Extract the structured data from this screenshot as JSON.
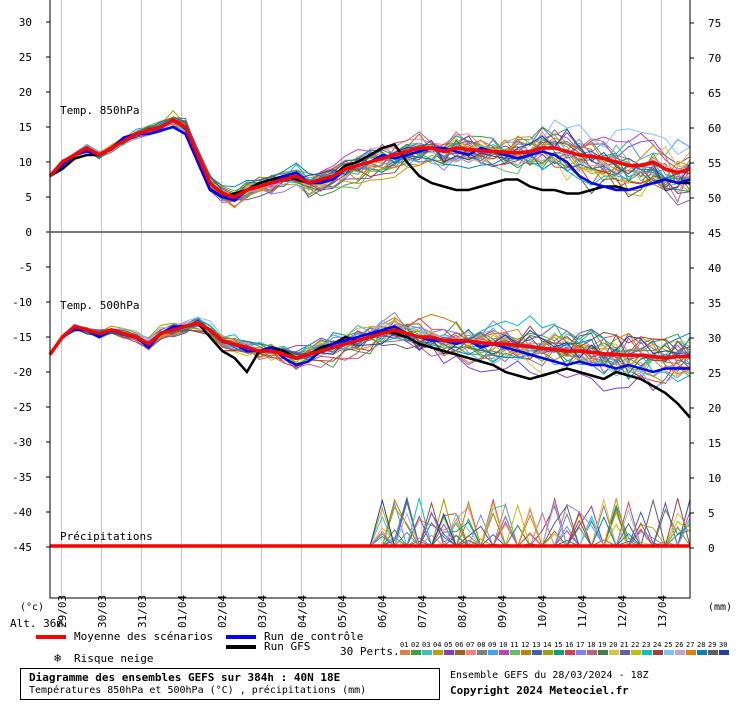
{
  "chart_data": {
    "type": "line",
    "panels": [
      {
        "label": "Temp. 850hPa",
        "y_axis_left": {
          "ticks": [
            30,
            25,
            20,
            15,
            10,
            5,
            0
          ]
        },
        "y_axis_right": {
          "ticks": [
            75,
            70,
            65,
            60,
            55,
            50,
            45
          ]
        },
        "mean": [
          8,
          10,
          11,
          12,
          11,
          12,
          13,
          14,
          14.5,
          15,
          16,
          15,
          11,
          7,
          5.5,
          5,
          6,
          6.5,
          7,
          7.5,
          8,
          7,
          7.5,
          8,
          9,
          9.5,
          10,
          10.5,
          11,
          11.5,
          12,
          12,
          11.5,
          12,
          11.8,
          11.6,
          11.5,
          11.4,
          11.3,
          11.5,
          12,
          12,
          11.5,
          11,
          10.8,
          10.5,
          10,
          9.5,
          9.5,
          10,
          9,
          8.5,
          9
        ],
        "control": [
          8,
          9.5,
          11,
          11.5,
          11,
          12,
          13.5,
          14,
          14,
          14.5,
          15,
          14,
          10,
          6,
          5,
          4.5,
          6,
          6.5,
          7,
          8,
          8.5,
          7,
          7,
          7.5,
          9,
          9.5,
          10,
          11,
          10.5,
          11,
          11.5,
          12,
          12,
          11.5,
          11,
          12,
          11.5,
          11,
          10.5,
          11,
          11.5,
          11,
          10,
          8,
          7,
          6.5,
          6,
          6,
          6.5,
          7,
          7.5,
          7,
          7.5
        ],
        "gfs": [
          8,
          9,
          10.5,
          11,
          11,
          12,
          13,
          14,
          14.5,
          15,
          16,
          15,
          10,
          6,
          5,
          5.5,
          6,
          7,
          7.5,
          8,
          7.5,
          7,
          7,
          8,
          9.5,
          10,
          11,
          12,
          12.5,
          10,
          8,
          7,
          6.5,
          6,
          6,
          6.5,
          7,
          7.5,
          7.5,
          6.5,
          6,
          6,
          5.5,
          5.5,
          6,
          6.5,
          6.5,
          6,
          6.5,
          7,
          7.5,
          7,
          7
        ]
      },
      {
        "label": "Temp. 500hPa",
        "y_axis_left": {
          "ticks": [
            -5,
            -10,
            -15,
            -20,
            -25,
            -30,
            -35,
            -40,
            -45
          ]
        },
        "y_axis_right": {
          "ticks": [
            40,
            35,
            30,
            25,
            20,
            15,
            10,
            5,
            0
          ]
        },
        "mean": [
          -17.5,
          -15,
          -13.5,
          -14,
          -14.5,
          -14,
          -14.5,
          -15,
          -16,
          -14.5,
          -14,
          -13.5,
          -13,
          -14,
          -15.5,
          -16,
          -16.5,
          -17,
          -17,
          -17.5,
          -18,
          -17.5,
          -17,
          -16.5,
          -16,
          -15.5,
          -15,
          -14.5,
          -14,
          -14.5,
          -15,
          -15,
          -15.5,
          -15.5,
          -15.6,
          -15.8,
          -16,
          -16,
          -16.2,
          -16.4,
          -16.6,
          -16.8,
          -17,
          -17,
          -17.2,
          -17.4,
          -17.5,
          -17.6,
          -17.6,
          -17.8,
          -18,
          -17.8,
          -17.8
        ],
        "control": [
          -17.5,
          -15,
          -14,
          -14,
          -15,
          -14,
          -14.5,
          -15,
          -16.5,
          -14.5,
          -13.5,
          -13.5,
          -13,
          -14,
          -15.5,
          -16,
          -17,
          -17,
          -16.5,
          -18,
          -19,
          -18.5,
          -17,
          -16,
          -15.5,
          -15,
          -14.5,
          -14,
          -13.5,
          -14.5,
          -15,
          -15.5,
          -15.5,
          -16,
          -15.5,
          -16.5,
          -16,
          -16.5,
          -17,
          -17.5,
          -18,
          -18.5,
          -19,
          -18.5,
          -19,
          -19,
          -19.5,
          -19,
          -19.5,
          -20,
          -19.5,
          -19.5,
          -19.5
        ],
        "gfs": [
          -17.5,
          -15,
          -13.5,
          -14,
          -14.5,
          -14,
          -14.5,
          -15,
          -16,
          -14.5,
          -14,
          -13.5,
          -13,
          -15,
          -17,
          -18,
          -20,
          -17,
          -16.5,
          -17,
          -18,
          -17.5,
          -16.5,
          -16,
          -15,
          -15.5,
          -15,
          -14,
          -14.5,
          -15,
          -16,
          -16.5,
          -17,
          -17.5,
          -18,
          -18.5,
          -19,
          -20,
          -20.5,
          -21,
          -20.5,
          -20,
          -19.5,
          -20,
          -20.5,
          -21,
          -20,
          -20.5,
          -21,
          -22,
          -23,
          -24.5,
          -26.5
        ]
      },
      {
        "label": "Précipitations",
        "y_axis_right": {
          "ticks": [
            10,
            5,
            0
          ]
        },
        "mean": [
          0,
          0,
          0,
          0,
          0,
          0,
          0,
          0,
          0,
          0,
          0,
          0,
          0,
          0,
          0,
          0,
          0,
          0,
          0,
          0,
          0,
          0,
          0,
          0,
          0,
          0,
          0,
          0,
          0,
          0,
          0,
          0,
          0,
          0,
          0,
          0,
          0,
          0,
          0,
          0,
          0,
          0,
          0,
          0,
          0,
          0,
          0,
          0,
          0,
          0,
          0,
          0,
          0
        ]
      }
    ],
    "x_ticks": [
      "29/03",
      "30/03",
      "31/03",
      "01/04",
      "02/04",
      "03/04",
      "04/04",
      "05/04",
      "06/04",
      "07/04",
      "08/04",
      "09/04",
      "10/04",
      "11/04",
      "12/04",
      "13/04"
    ],
    "left_unit": "(°c)",
    "right_unit": "(mm)",
    "altitude": "Alt. 36m",
    "legend": {
      "mean": "Moyenne des scénarios",
      "control": "Run de contrôle",
      "gfs": "Run GFS",
      "snow": "Risque neige",
      "perts": "30 Perts."
    },
    "pert_labels": [
      "01",
      "02",
      "03",
      "04",
      "05",
      "06",
      "07",
      "08",
      "09",
      "10",
      "11",
      "12",
      "13",
      "14",
      "15",
      "16",
      "17",
      "18",
      "19",
      "20",
      "21",
      "22",
      "23",
      "24",
      "25",
      "26",
      "27",
      "28",
      "29",
      "30"
    ],
    "pert_colors": [
      "#e08040",
      "#40a040",
      "#40c0c0",
      "#c0a000",
      "#8040c0",
      "#a06020",
      "#ff8080",
      "#808080",
      "#40a0ff",
      "#c040c0",
      "#60c060",
      "#c08000",
      "#4060c0",
      "#a0a000",
      "#00a080",
      "#e04040",
      "#8080ff",
      "#c06080",
      "#408040",
      "#e0c040",
      "#6060a0",
      "#c0c000",
      "#00c0c0",
      "#a04040",
      "#80c0ff",
      "#c0a0e0",
      "#e08000",
      "#0080c0",
      "#606060",
      "#2040a0"
    ],
    "colors": {
      "mean": "#ff0000",
      "control": "#0000ff",
      "gfs": "#000000"
    }
  },
  "footer": {
    "title": "Diagramme des ensembles GEFS sur 384h : 40N 18E",
    "subtitle": "Températures 850hPa et 500hPa (°C) , précipitations (mm)",
    "run_info": "Ensemble GEFS du 28/03/2024 - 18Z",
    "copyright": "Copyright 2024 Meteociel.fr"
  }
}
